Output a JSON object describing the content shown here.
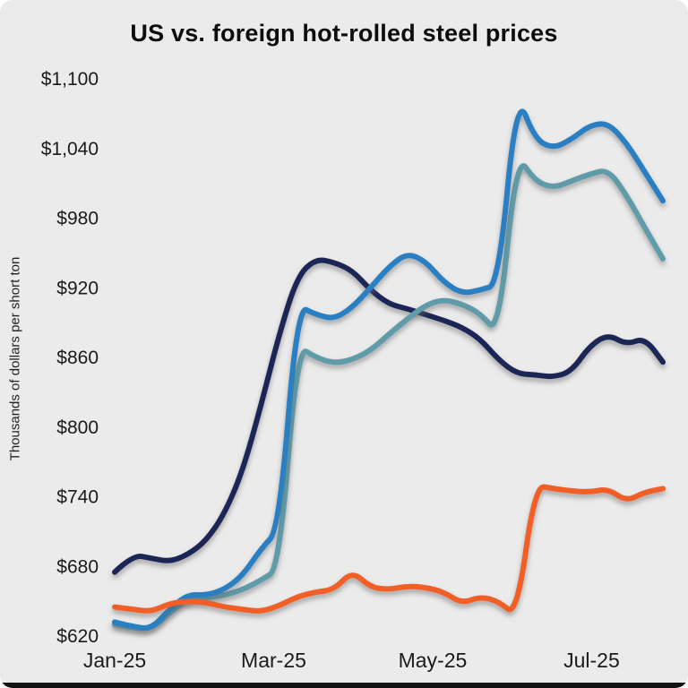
{
  "chart_data": {
    "type": "line",
    "title": "US vs. foreign hot-rolled steel prices",
    "ylabel": "Thousands of dollars per short ton",
    "xlabel": "",
    "legend": "none",
    "grid": false,
    "background_color": "#ebebeb",
    "ylim": [
      620,
      1100
    ],
    "y_tick_step": 60,
    "y_tick_values": [
      620,
      680,
      740,
      800,
      860,
      920,
      980,
      1040,
      1100
    ],
    "y_tick_labels": [
      "$620",
      "$680",
      "$740",
      "$800",
      "$860",
      "$920",
      "$980",
      "$1,040",
      "$1,100"
    ],
    "x_unit": "weeks since Jan-25",
    "x_tick_positions": [
      0,
      8.7,
      17.4,
      26.1
    ],
    "x_tick_labels": [
      "Jan-25",
      "Mar-25",
      "May-25",
      "Jul-25"
    ],
    "x": [
      0,
      1,
      2,
      3,
      4,
      5,
      6,
      7,
      8,
      9,
      10,
      11,
      12,
      13,
      14,
      15,
      16,
      17,
      18,
      19,
      20,
      21,
      22,
      23,
      24,
      25,
      26,
      27,
      28,
      29,
      30
    ],
    "series": [
      {
        "name": "dark-navy",
        "color": "#1b2557",
        "values": [
          675,
          690,
          687,
          684,
          690,
          702,
          725,
          762,
          818,
          880,
          930,
          945,
          942,
          935,
          918,
          906,
          902,
          897,
          892,
          886,
          876,
          858,
          846,
          845,
          843,
          848,
          870,
          880,
          871,
          877,
          856
        ]
      },
      {
        "name": "teal",
        "color": "#5e9ba8",
        "values": [
          630,
          627,
          626,
          640,
          652,
          653,
          655,
          660,
          668,
          678,
          870,
          860,
          855,
          858,
          866,
          880,
          893,
          905,
          910,
          906,
          898,
          880,
          1035,
          1012,
          1006,
          1012,
          1018,
          1022,
          1000,
          972,
          945
        ]
      },
      {
        "name": "blue",
        "color": "#2a7fc3",
        "values": [
          632,
          628,
          626,
          643,
          656,
          655,
          660,
          672,
          695,
          712,
          905,
          897,
          893,
          903,
          920,
          938,
          950,
          943,
          925,
          915,
          918,
          923,
          1088,
          1048,
          1040,
          1048,
          1060,
          1062,
          1045,
          1020,
          995
        ]
      },
      {
        "name": "orange",
        "color": "#f15f27",
        "values": [
          645,
          643,
          641,
          648,
          650,
          649,
          645,
          643,
          641,
          646,
          654,
          658,
          660,
          676,
          662,
          660,
          663,
          662,
          658,
          648,
          654,
          650,
          637,
          750,
          747,
          745,
          744,
          747,
          736,
          744,
          747
        ]
      }
    ]
  }
}
